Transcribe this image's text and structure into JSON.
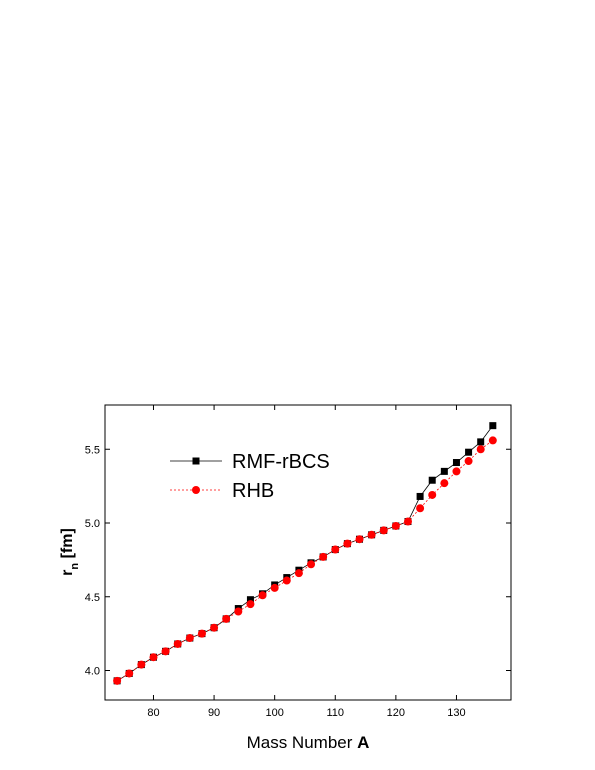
{
  "chart_data": {
    "type": "line",
    "x_label": "Mass Number ",
    "x_label_bold": "A",
    "y_label": "r",
    "y_label_sub": "n",
    "y_label_unit": " [fm]",
    "x": [
      74,
      76,
      78,
      80,
      82,
      84,
      86,
      88,
      90,
      92,
      94,
      96,
      98,
      100,
      102,
      104,
      106,
      108,
      110,
      112,
      114,
      116,
      118,
      120,
      122,
      124,
      126,
      128,
      130,
      132,
      134,
      136
    ],
    "series": [
      {
        "name": "RMF-rBCS",
        "color": "#000000",
        "marker": "square",
        "line": "solid",
        "values": [
          3.93,
          3.98,
          4.04,
          4.09,
          4.13,
          4.18,
          4.22,
          4.25,
          4.29,
          4.35,
          4.42,
          4.48,
          4.52,
          4.58,
          4.63,
          4.68,
          4.73,
          4.77,
          4.82,
          4.86,
          4.89,
          4.92,
          4.95,
          4.98,
          5.01,
          5.18,
          5.29,
          5.35,
          5.41,
          5.48,
          5.55,
          5.66
        ]
      },
      {
        "name": "RHB",
        "color": "#ff0000",
        "marker": "circle",
        "line": "dotted",
        "values": [
          3.93,
          3.98,
          4.04,
          4.09,
          4.13,
          4.18,
          4.22,
          4.25,
          4.29,
          4.35,
          4.4,
          4.45,
          4.51,
          4.56,
          4.61,
          4.66,
          4.72,
          4.77,
          4.82,
          4.86,
          4.89,
          4.92,
          4.95,
          4.98,
          5.01,
          5.1,
          5.19,
          5.27,
          5.35,
          5.42,
          5.5,
          5.56
        ]
      }
    ],
    "xlim": [
      72,
      139
    ],
    "xticks": [
      80,
      90,
      100,
      110,
      120,
      130
    ],
    "ylim": [
      3.8,
      5.8
    ],
    "yticks": [
      {
        "value": 4,
        "label": "4.0"
      },
      4.5,
      {
        "value": 5,
        "label": "5.0"
      },
      5.5
    ]
  }
}
